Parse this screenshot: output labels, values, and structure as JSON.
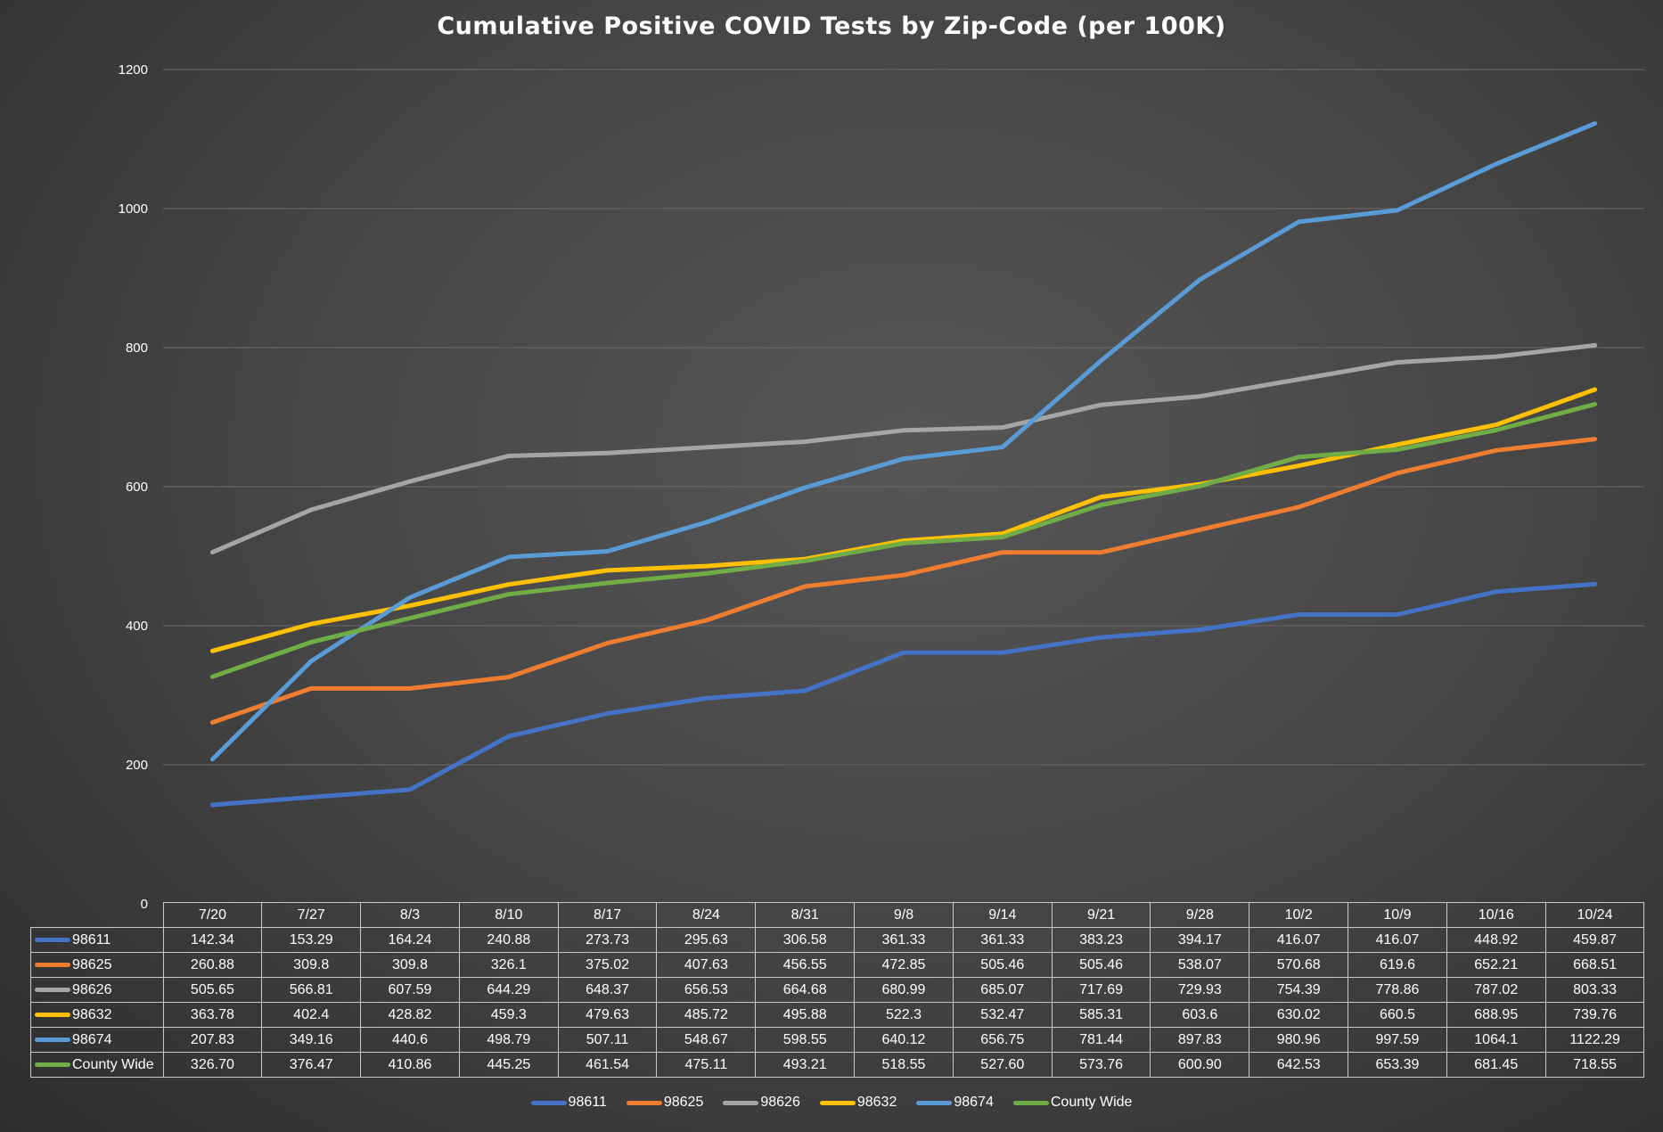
{
  "chart_data": {
    "type": "line",
    "title": "Cumulative Positive COVID Tests by Zip-Code (per 100K)",
    "xlabel": "",
    "ylabel": "",
    "ylim": [
      0,
      1200
    ],
    "yticks": [
      0,
      200,
      400,
      600,
      800,
      1000,
      1200
    ],
    "grid": "horizontal",
    "legend_position": "bottom",
    "categories": [
      "7/20",
      "7/27",
      "8/3",
      "8/10",
      "8/17",
      "8/24",
      "8/31",
      "9/8",
      "9/14",
      "9/21",
      "9/28",
      "10/2",
      "10/9",
      "10/16",
      "10/24"
    ],
    "series": [
      {
        "name": "98611",
        "color": "#4472c4",
        "values": [
          142.34,
          153.29,
          164.24,
          240.88,
          273.73,
          295.63,
          306.58,
          361.33,
          361.33,
          383.23,
          394.17,
          416.07,
          416.07,
          448.92,
          459.87
        ],
        "labels": [
          "142.34",
          "153.29",
          "164.24",
          "240.88",
          "273.73",
          "295.63",
          "306.58",
          "361.33",
          "361.33",
          "383.23",
          "394.17",
          "416.07",
          "416.07",
          "448.92",
          "459.87"
        ]
      },
      {
        "name": "98625",
        "color": "#ed7d31",
        "values": [
          260.88,
          309.8,
          309.8,
          326.1,
          375.02,
          407.63,
          456.55,
          472.85,
          505.46,
          505.46,
          538.07,
          570.68,
          619.6,
          652.21,
          668.51
        ],
        "labels": [
          "260.88",
          "309.8",
          "309.8",
          "326.1",
          "375.02",
          "407.63",
          "456.55",
          "472.85",
          "505.46",
          "505.46",
          "538.07",
          "570.68",
          "619.6",
          "652.21",
          "668.51"
        ]
      },
      {
        "name": "98626",
        "color": "#a5a5a5",
        "values": [
          505.65,
          566.81,
          607.59,
          644.29,
          648.37,
          656.53,
          664.68,
          680.99,
          685.07,
          717.69,
          729.93,
          754.39,
          778.86,
          787.02,
          803.33
        ],
        "labels": [
          "505.65",
          "566.81",
          "607.59",
          "644.29",
          "648.37",
          "656.53",
          "664.68",
          "680.99",
          "685.07",
          "717.69",
          "729.93",
          "754.39",
          "778.86",
          "787.02",
          "803.33"
        ]
      },
      {
        "name": "98632",
        "color": "#ffc000",
        "values": [
          363.78,
          402.4,
          428.82,
          459.3,
          479.63,
          485.72,
          495.88,
          522.3,
          532.47,
          585.31,
          603.6,
          630.02,
          660.5,
          688.95,
          739.76
        ],
        "labels": [
          "363.78",
          "402.4",
          "428.82",
          "459.3",
          "479.63",
          "485.72",
          "495.88",
          "522.3",
          "532.47",
          "585.31",
          "603.6",
          "630.02",
          "660.5",
          "688.95",
          "739.76"
        ]
      },
      {
        "name": "98674",
        "color": "#5b9bd5",
        "values": [
          207.83,
          349.16,
          440.6,
          498.79,
          507.11,
          548.67,
          598.55,
          640.12,
          656.75,
          781.44,
          897.83,
          980.96,
          997.59,
          1064.1,
          1122.29
        ],
        "labels": [
          "207.83",
          "349.16",
          "440.6",
          "498.79",
          "507.11",
          "548.67",
          "598.55",
          "640.12",
          "656.75",
          "781.44",
          "897.83",
          "980.96",
          "997.59",
          "1064.1",
          "1122.29"
        ]
      },
      {
        "name": "County Wide",
        "color": "#70ad47",
        "values": [
          326.7,
          376.47,
          410.86,
          445.25,
          461.54,
          475.11,
          493.21,
          518.55,
          527.6,
          573.76,
          600.9,
          642.53,
          653.39,
          681.45,
          718.55
        ],
        "labels": [
          "326.70",
          "376.47",
          "410.86",
          "445.25",
          "461.54",
          "475.11",
          "493.21",
          "518.55",
          "527.60",
          "573.76",
          "600.90",
          "642.53",
          "653.39",
          "681.45",
          "718.55"
        ]
      }
    ]
  }
}
